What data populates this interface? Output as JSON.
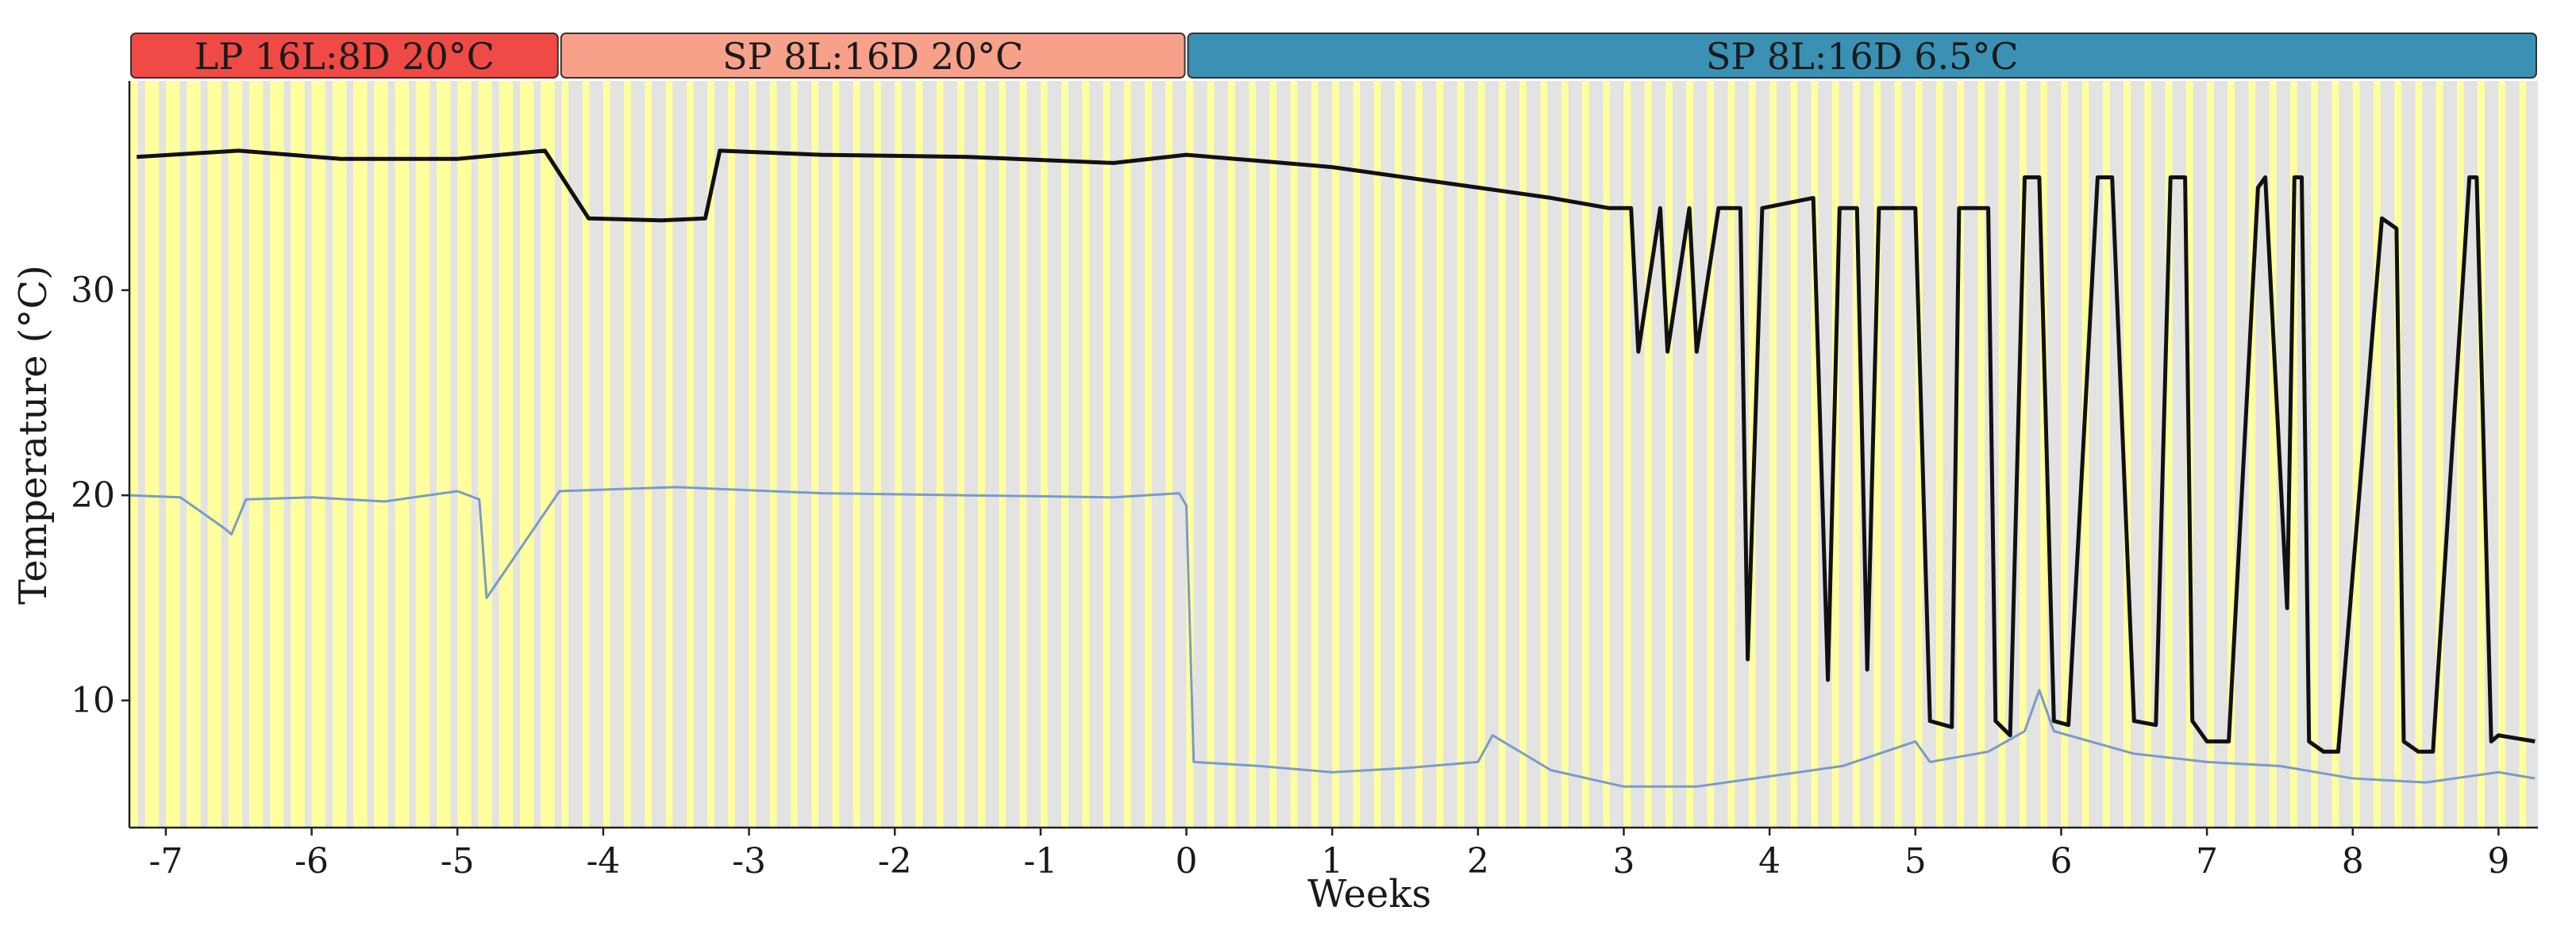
{
  "chart_data": {
    "type": "line",
    "title": "",
    "xlabel": "Weeks",
    "ylabel": "Temperature (°C)",
    "xlim": [
      -7.25,
      9.27
    ],
    "ylim": [
      3.8,
      40.2
    ],
    "x_ticks": [
      -7,
      -6,
      -5,
      -4,
      -3,
      -2,
      -1,
      0,
      1,
      2,
      3,
      4,
      5,
      6,
      7,
      8,
      9
    ],
    "x_tick_labels": [
      "-7",
      "-6",
      "-5",
      "-4",
      "-3",
      "-2",
      "-1",
      "0",
      "1",
      "2",
      "3",
      "4",
      "5",
      "6",
      "7",
      "8",
      "9"
    ],
    "y_ticks": [
      10,
      20,
      30
    ],
    "y_tick_labels": [
      "10",
      "20",
      "30"
    ],
    "grid": false,
    "legend": "none",
    "phases": [
      {
        "label": "LP 16L:8D 20°C",
        "start": -7.25,
        "end": -4.3,
        "color": "#ef4a45"
      },
      {
        "label": "SP 8L:16D 20°C",
        "start": -4.3,
        "end": 0,
        "color": "#f7a08a"
      },
      {
        "label": "SP 8L:16D 6.5°C",
        "start": 0,
        "end": 9.27,
        "color": "#3a91b3"
      }
    ],
    "light_dark_shading": {
      "light_color": "#ffff9e",
      "dark_color": "#e3e3e3"
    },
    "series": [
      {
        "color": "#111111",
        "x": [
          -7.2,
          -6.5,
          -5.8,
          -5.0,
          -4.4,
          -4.1,
          -3.6,
          -3.3,
          -3.2,
          -2.5,
          -1.5,
          -0.5,
          0.0,
          0.5,
          1.0,
          1.5,
          2.0,
          2.5,
          2.9,
          3.05,
          3.1,
          3.25,
          3.3,
          3.45,
          3.5,
          3.65,
          3.8,
          3.85,
          3.95,
          4.3,
          4.4,
          4.48,
          4.6,
          4.67,
          4.75,
          4.85,
          5.0,
          5.1,
          5.25,
          5.3,
          5.5,
          5.55,
          5.65,
          5.75,
          5.85,
          5.95,
          6.05,
          6.25,
          6.35,
          6.5,
          6.65,
          6.75,
          6.85,
          6.9,
          7.0,
          7.15,
          7.35,
          7.4,
          7.55,
          7.6,
          7.65,
          7.7,
          7.8,
          7.9,
          8.2,
          8.3,
          8.35,
          8.45,
          8.55,
          8.8,
          8.85,
          8.95,
          9.0,
          9.25
        ],
        "y": [
          36.5,
          36.8,
          36.4,
          36.4,
          36.8,
          33.5,
          33.4,
          33.5,
          36.8,
          36.6,
          36.5,
          36.2,
          36.6,
          36.3,
          36.0,
          35.5,
          35.0,
          34.5,
          34.0,
          34.0,
          27.0,
          34.0,
          27.0,
          34.0,
          27.0,
          34.0,
          34.0,
          12.0,
          34.0,
          34.5,
          11.0,
          34.0,
          34.0,
          11.5,
          34.0,
          34.0,
          34.0,
          9.0,
          8.7,
          34.0,
          34.0,
          9.0,
          8.3,
          35.5,
          35.5,
          9.0,
          8.8,
          35.5,
          35.5,
          9.0,
          8.8,
          35.5,
          35.5,
          9.0,
          8.0,
          8.0,
          35.0,
          35.5,
          14.5,
          35.5,
          35.5,
          8.0,
          7.5,
          7.5,
          33.5,
          33.0,
          8.0,
          7.5,
          7.5,
          35.5,
          35.5,
          8.0,
          8.3,
          8.0
        ]
      },
      {
        "color": "#7a9cc4",
        "x": [
          -7.25,
          -6.9,
          -6.6,
          -6.55,
          -6.45,
          -6.0,
          -5.5,
          -5.0,
          -4.85,
          -4.8,
          -4.3,
          -3.5,
          -2.5,
          -1.5,
          -0.5,
          -0.05,
          0.0,
          0.05,
          0.5,
          1.0,
          1.5,
          2.0,
          2.1,
          2.5,
          3.0,
          3.5,
          4.0,
          4.5,
          5.0,
          5.1,
          5.5,
          5.75,
          5.85,
          5.95,
          6.5,
          7.0,
          7.5,
          8.0,
          8.5,
          9.0,
          9.25
        ],
        "y": [
          20.0,
          19.9,
          18.4,
          18.1,
          19.8,
          19.9,
          19.7,
          20.2,
          19.8,
          15.0,
          20.2,
          20.4,
          20.1,
          20.0,
          19.9,
          20.1,
          19.5,
          7.0,
          6.8,
          6.5,
          6.7,
          7.0,
          8.3,
          6.6,
          5.8,
          5.8,
          6.3,
          6.8,
          8.0,
          7.0,
          7.5,
          8.5,
          10.5,
          8.5,
          7.4,
          7.0,
          6.8,
          6.2,
          6.0,
          6.5,
          6.2
        ]
      }
    ]
  }
}
